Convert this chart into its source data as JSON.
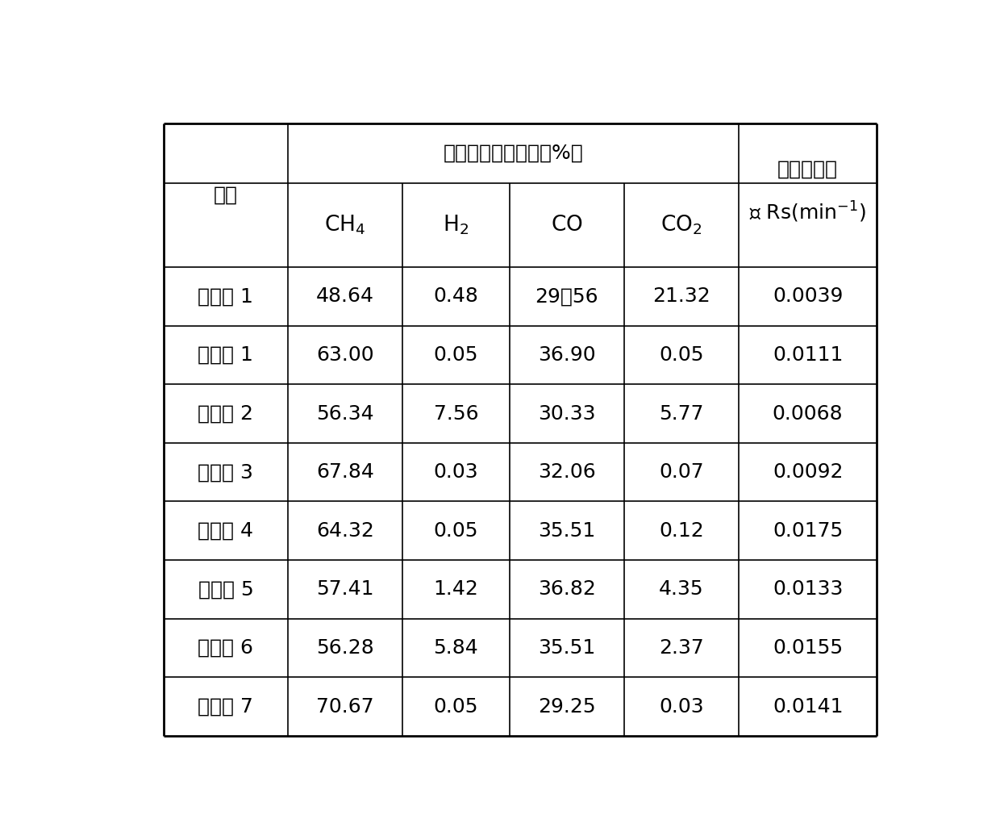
{
  "title_merged": "各个气体组分含量（%）",
  "name_label": "名称",
  "avg_line1": "平均反应速",
  "avg_line2": "率 Rs(min",
  "sub_headers_math": [
    "CH_4",
    "H_2",
    "CO",
    "CO_2"
  ],
  "rows": [
    [
      "对比例 1",
      "48.64",
      "0.48",
      "29．56",
      "21.32",
      "0.0039"
    ],
    [
      "实施例 1",
      "63.00",
      "0.05",
      "36.90",
      "0.05",
      "0.0111"
    ],
    [
      "实施例 2",
      "56.34",
      "7.56",
      "30.33",
      "5.77",
      "0.0068"
    ],
    [
      "实施例 3",
      "67.84",
      "0.03",
      "32.06",
      "0.07",
      "0.0092"
    ],
    [
      "实施例 4",
      "64.32",
      "0.05",
      "35.51",
      "0.12",
      "0.0175"
    ],
    [
      "实施例 5",
      "57.41",
      "1.42",
      "36.82",
      "4.35",
      "0.0133"
    ],
    [
      "实施例 6",
      "56.28",
      "5.84",
      "35.51",
      "2.37",
      "0.0155"
    ],
    [
      "实施例 7",
      "70.67",
      "0.05",
      "29.25",
      "0.03",
      "0.0141"
    ]
  ],
  "bg_color": "#ffffff",
  "text_color": "#000000",
  "line_color": "#000000",
  "font_size": 18,
  "lw_outer": 2.0,
  "lw_inner": 1.2
}
